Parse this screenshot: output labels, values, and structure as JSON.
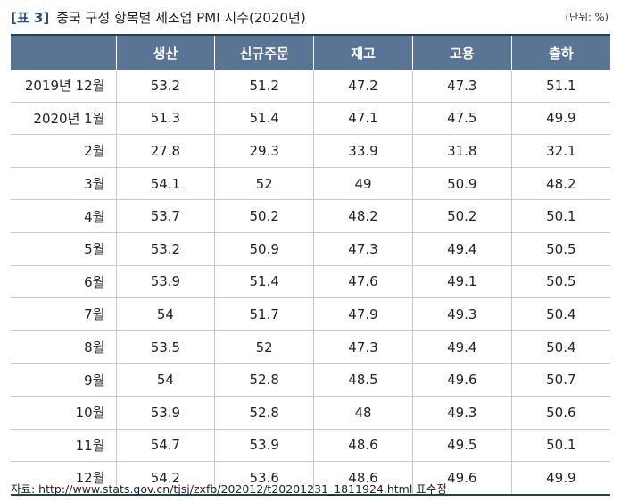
{
  "title": {
    "table_no": "[표 3]",
    "text": "중국 구성 항목별 제조업 PMI 지수(2020년)"
  },
  "unit": "(단위: %)",
  "table": {
    "columns": [
      "",
      "생산",
      "신규주문",
      "재고",
      "고용",
      "출하"
    ],
    "rows": [
      [
        "2019년 12월",
        "53.2",
        "51.2",
        "47.2",
        "47.3",
        "51.1"
      ],
      [
        "2020년 1월",
        "51.3",
        "51.4",
        "47.1",
        "47.5",
        "49.9"
      ],
      [
        "2월",
        "27.8",
        "29.3",
        "33.9",
        "31.8",
        "32.1"
      ],
      [
        "3월",
        "54.1",
        "52",
        "49",
        "50.9",
        "48.2"
      ],
      [
        "4월",
        "53.7",
        "50.2",
        "48.2",
        "50.2",
        "50.1"
      ],
      [
        "5월",
        "53.2",
        "50.9",
        "47.3",
        "49.4",
        "50.5"
      ],
      [
        "6월",
        "53.9",
        "51.4",
        "47.6",
        "49.1",
        "50.5"
      ],
      [
        "7월",
        "54",
        "51.7",
        "47.9",
        "49.3",
        "50.4"
      ],
      [
        "8월",
        "53.5",
        "52",
        "47.3",
        "49.4",
        "50.4"
      ],
      [
        "9월",
        "54",
        "52.8",
        "48.5",
        "49.6",
        "50.7"
      ],
      [
        "10월",
        "53.9",
        "52.8",
        "48",
        "49.3",
        "50.6"
      ],
      [
        "11월",
        "54.7",
        "53.9",
        "48.6",
        "49.5",
        "50.1"
      ],
      [
        "12월",
        "54.2",
        "53.6",
        "48.6",
        "49.6",
        "49.9"
      ]
    ]
  },
  "source": "자료: http://www.stats.gov.cn/tjsj/zxfb/202012/t20201231_1811924.html 표수정"
}
